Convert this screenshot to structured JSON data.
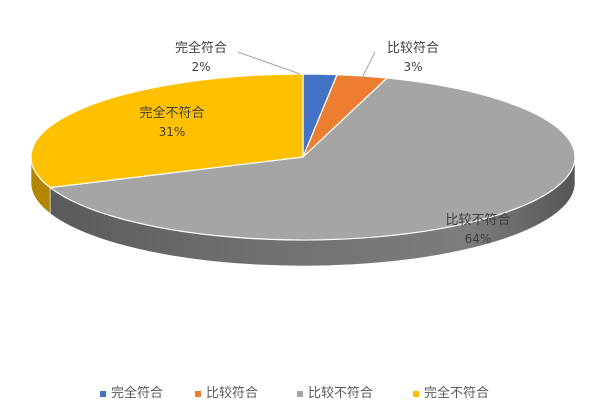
{
  "chart_data": {
    "type": "pie",
    "title": "",
    "categories": [
      "完全符合",
      "比较符合",
      "比较不符合",
      "完全不符合"
    ],
    "values": [
      2,
      3,
      64,
      31
    ],
    "value_labels": [
      "2%",
      "3%",
      "64%",
      "31%"
    ],
    "colors": [
      "#4472C4",
      "#ED7D31",
      "#A5A5A5",
      "#FFC000"
    ],
    "legend_position": "bottom",
    "three_d": true
  }
}
